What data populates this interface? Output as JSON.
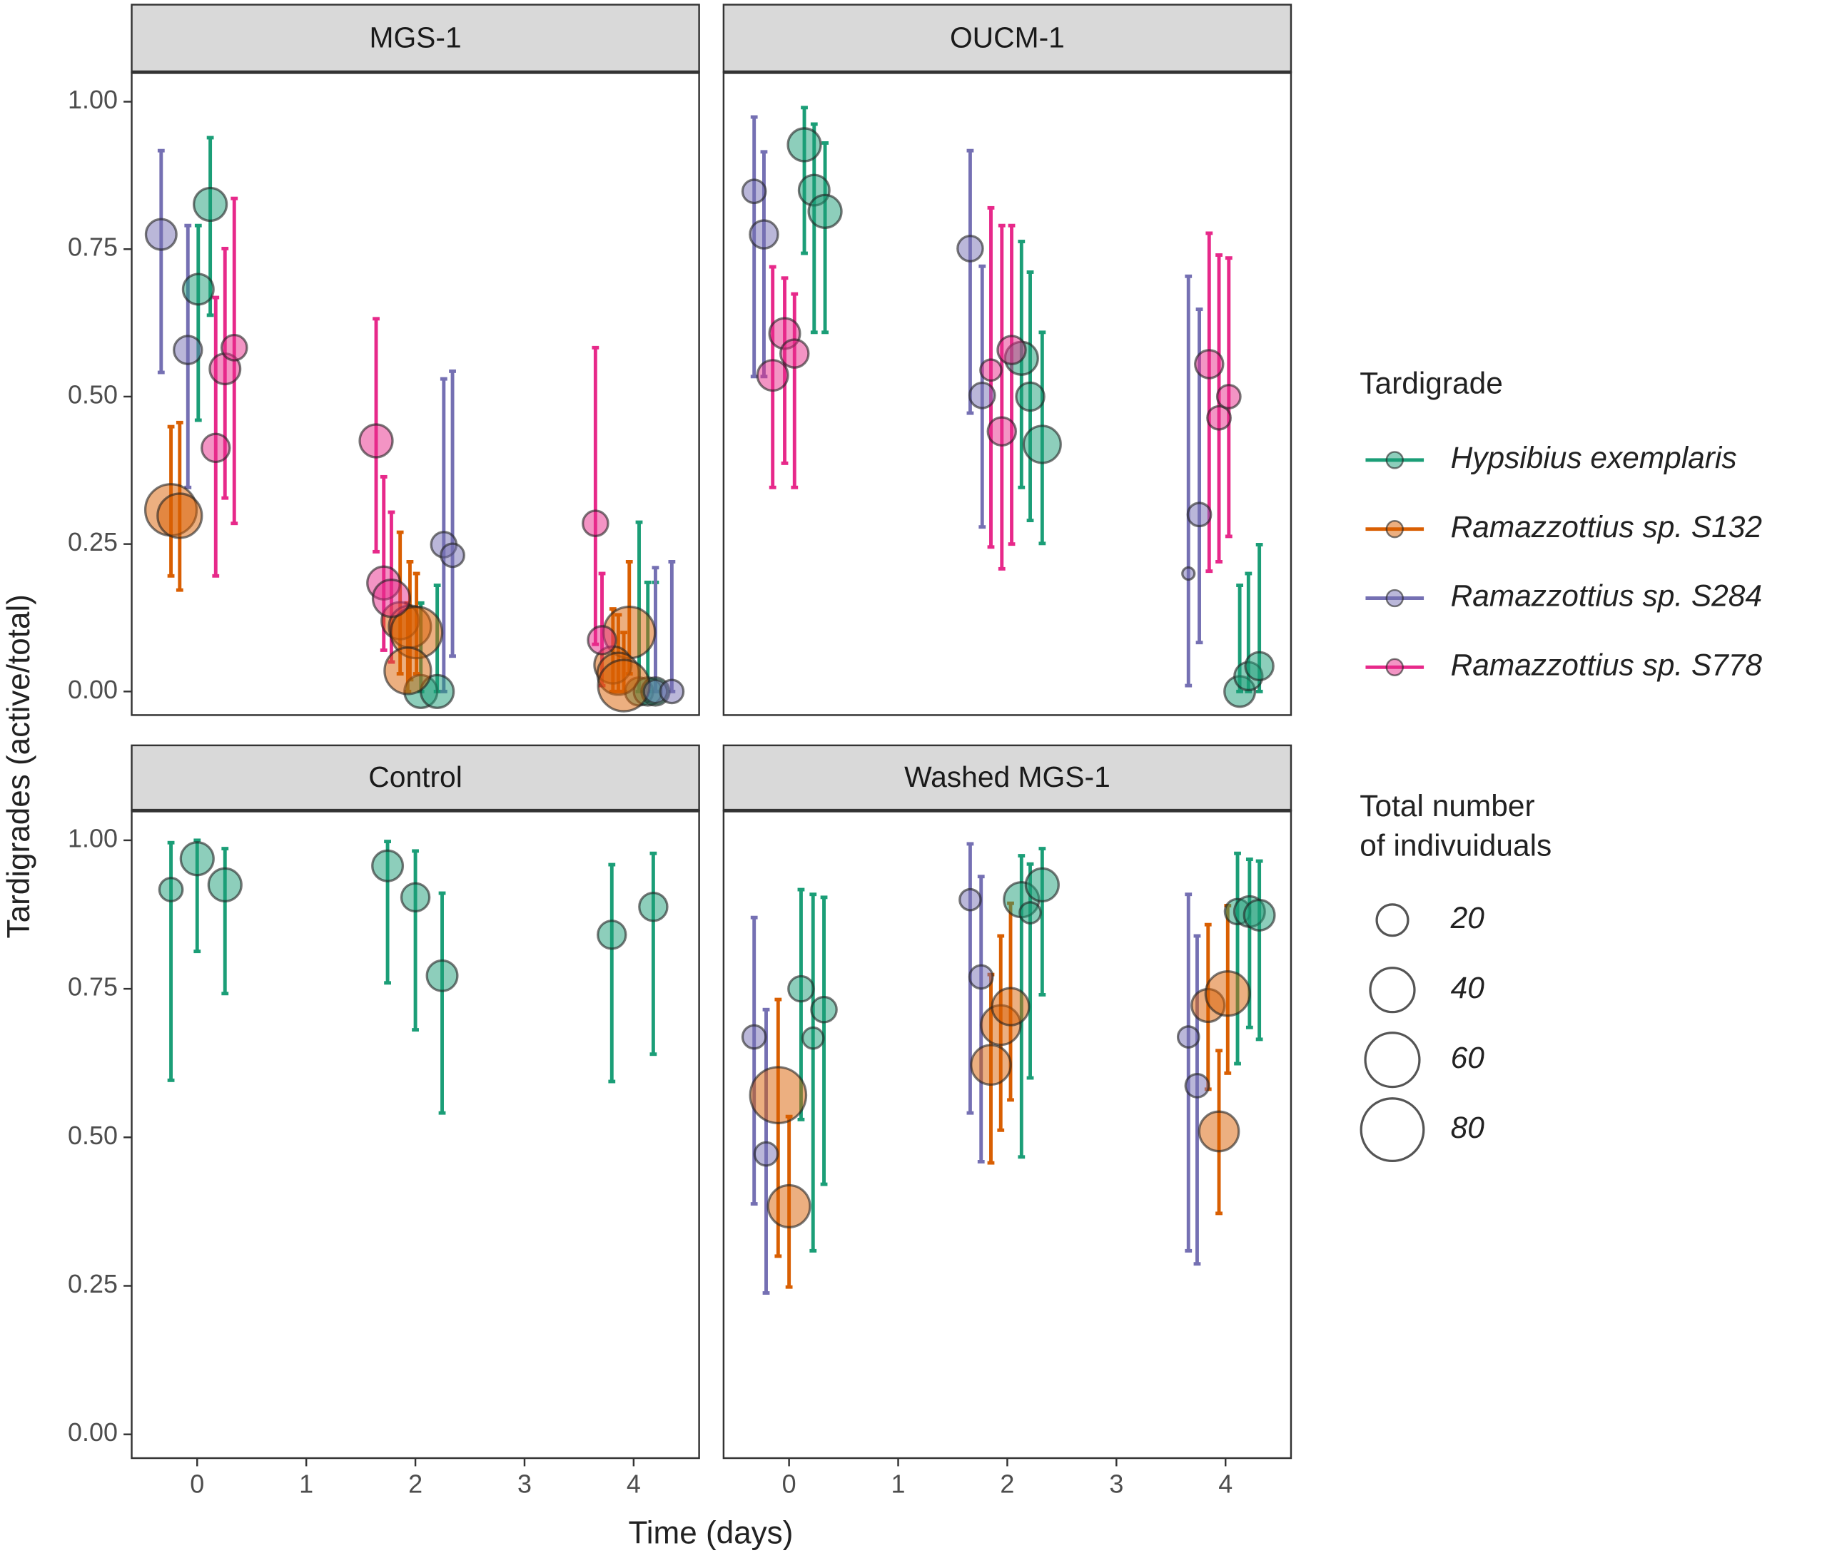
{
  "chart_data": {
    "type": "scatter",
    "x_label": "Time (days)",
    "y_label": "Tardigrades (active/total)",
    "xlim": [
      -0.6,
      4.6
    ],
    "xticks": [
      0,
      1,
      2,
      3,
      4
    ],
    "ylim": [
      -0.04,
      1.05
    ],
    "yticks": [
      {
        "value": 0,
        "label": "0.00"
      },
      {
        "value": 0.25,
        "label": "0.25"
      },
      {
        "value": 0.5,
        "label": "0.50"
      },
      {
        "value": 0.75,
        "label": "0.75"
      },
      {
        "value": 1,
        "label": "1.00"
      }
    ],
    "legend_title": "Tardigrade",
    "series": [
      {
        "name": "Hypsibius exemplaris",
        "color": "#1b9e77"
      },
      {
        "name": "Ramazzottius sp. S132",
        "color": "#d95f02"
      },
      {
        "name": "Ramazzottius sp. S284",
        "color": "#7570b3"
      },
      {
        "name": "Ramazzottius sp. S778",
        "color": "#e7298a"
      }
    ],
    "size_legend": {
      "title": [
        "Total number",
        "of indivuiduals"
      ],
      "values": [
        20,
        40,
        60,
        80
      ]
    },
    "facets": [
      {
        "title": "MGS-1",
        "series": [
          {
            "x": [
              0.12,
              0.01,
              2.05,
              2.2,
              4.05,
              4.13,
              4.2
            ],
            "values": [
              0.826,
              0.682,
              0,
              0,
              0,
              0,
              0
            ],
            "lower": [
              0.638,
              0.46,
              0,
              0,
              0,
              0,
              0
            ],
            "upper": [
              0.939,
              0.79,
              0.15,
              0.18,
              0.287,
              0.185,
              0.185
            ],
            "sizes": [
              22,
              19,
              22,
              22,
              16,
              16,
              16
            ]
          },
          {
            "x": [
              -0.24,
              -0.16,
              1.86,
              1.95,
              2.01,
              1.93,
              3.96,
              3.81,
              3.86,
              3.91
            ],
            "values": [
              0.308,
              0.298,
              0.12,
              0.11,
              0.1,
              0.035,
              0.1,
              0.045,
              0.03,
              0.01
            ],
            "lower": [
              0.196,
              0.172,
              0.03,
              0.02,
              0.03,
              0,
              0.03,
              0,
              0,
              0
            ],
            "upper": [
              0.449,
              0.456,
              0.27,
              0.22,
              0.2,
              0.15,
              0.22,
              0.14,
              0.13,
              0.1
            ],
            "sizes": [
              54,
              40,
              28,
              36,
              54,
              44,
              54,
              28,
              36,
              54
            ]
          },
          {
            "x": [
              -0.33,
              -0.085,
              2.26,
              2.34,
              4.2,
              4.35
            ],
            "values": [
              0.775,
              0.579,
              0.249,
              0.231,
              0,
              0
            ],
            "lower": [
              0.541,
              0.346,
              0,
              0.06,
              0,
              0
            ],
            "upper": [
              0.917,
              0.79,
              0.53,
              0.543,
              0.21,
              0.22
            ],
            "sizes": [
              19,
              16,
              13,
              11,
              11,
              11
            ]
          },
          {
            "x": [
              0.17,
              0.255,
              0.34,
              1.64,
              1.71,
              1.78,
              3.65,
              3.71
            ],
            "values": [
              0.413,
              0.547,
              0.583,
              0.425,
              0.184,
              0.158,
              0.285,
              0.087
            ],
            "lower": [
              0.196,
              0.328,
              0.285,
              0.237,
              0.07,
              0.05,
              0.08,
              0.01
            ],
            "upper": [
              0.668,
              0.751,
              0.836,
              0.632,
              0.364,
              0.304,
              0.583,
              0.2
            ],
            "sizes": [
              16,
              19,
              13,
              22,
              22,
              28,
              13,
              16
            ]
          }
        ]
      },
      {
        "title": "OUCM-1",
        "series": [
          {
            "x": [
              0.14,
              0.23,
              0.33,
              2.13,
              2.21,
              2.32,
              4.13,
              4.21,
              4.31
            ],
            "values": [
              0.927,
              0.85,
              0.814,
              0.565,
              0.5,
              0.419,
              0,
              0.026,
              0.043
            ],
            "lower": [
              0.743,
              0.609,
              0.609,
              0.346,
              0.29,
              0.251,
              0,
              0,
              0
            ],
            "upper": [
              0.99,
              0.962,
              0.93,
              0.763,
              0.711,
              0.609,
              0.18,
              0.2,
              0.249
            ],
            "sizes": [
              22,
              19,
              22,
              22,
              16,
              28,
              19,
              16,
              16
            ]
          },
          {
            "x": [],
            "values": [],
            "lower": [],
            "upper": [],
            "sizes": []
          },
          {
            "x": [
              -0.32,
              -0.23,
              1.66,
              1.77,
              3.66,
              3.76
            ],
            "values": [
              0.848,
              0.775,
              0.751,
              0.502,
              0.2,
              0.3
            ],
            "lower": [
              0.534,
              0.534,
              0.472,
              0.279,
              0.01,
              0.083
            ],
            "upper": [
              0.974,
              0.915,
              0.917,
              0.721,
              0.704,
              0.648
            ],
            "sizes": [
              11,
              16,
              13,
              13,
              3,
              11
            ]
          },
          {
            "x": [
              -0.15,
              -0.04,
              0.05,
              1.85,
              1.95,
              2.04,
              3.85,
              3.94,
              4.03
            ],
            "values": [
              0.536,
              0.607,
              0.573,
              0.545,
              0.441,
              0.579,
              0.555,
              0.464,
              0.5
            ],
            "lower": [
              0.346,
              0.387,
              0.346,
              0.245,
              0.208,
              0.25,
              0.204,
              0.22,
              0.263
            ],
            "upper": [
              0.72,
              0.701,
              0.674,
              0.82,
              0.79,
              0.79,
              0.777,
              0.74,
              0.735
            ],
            "sizes": [
              19,
              19,
              16,
              9,
              16,
              16,
              16,
              11,
              11
            ]
          }
        ]
      },
      {
        "title": "Control",
        "series": [
          {
            "x": [
              -0.24,
              0,
              0.255,
              1.745,
              2.0,
              2.245,
              3.8,
              4.18
            ],
            "values": [
              0.917,
              0.969,
              0.925,
              0.957,
              0.904,
              0.772,
              0.841,
              0.888
            ],
            "lower": [
              0.596,
              0.813,
              0.742,
              0.76,
              0.681,
              0.541,
              0.594,
              0.64
            ],
            "upper": [
              0.996,
              1.0,
              0.986,
              0.998,
              0.982,
              0.911,
              0.959,
              0.978
            ],
            "sizes": [
              11,
              22,
              22,
              19,
              16,
              19,
              16,
              16
            ]
          },
          {
            "x": [],
            "values": [],
            "lower": [],
            "upper": [],
            "sizes": []
          },
          {
            "x": [],
            "values": [],
            "lower": [],
            "upper": [],
            "sizes": []
          },
          {
            "x": [],
            "values": [],
            "lower": [],
            "upper": [],
            "sizes": []
          }
        ]
      },
      {
        "title": "Washed MGS-1",
        "series": [
          {
            "x": [
              0.11,
              0.22,
              0.32,
              2.13,
              2.21,
              2.32,
              4.11,
              4.22,
              4.31
            ],
            "values": [
              0.75,
              0.667,
              0.715,
              0.9,
              0.878,
              0.925,
              0.88,
              0.88,
              0.874
            ],
            "lower": [
              0.53,
              0.309,
              0.421,
              0.467,
              0.6,
              0.74,
              0.624,
              0.685,
              0.665
            ],
            "upper": [
              0.917,
              0.909,
              0.904,
              0.974,
              0.96,
              0.986,
              0.978,
              0.968,
              0.965
            ],
            "sizes": [
              13,
              9,
              13,
              25,
              9,
              22,
              13,
              19,
              19
            ]
          },
          {
            "x": [
              -0.1,
              0,
              1.85,
              1.94,
              2.03,
              3.84,
              3.94,
              4.02
            ],
            "values": [
              0.571,
              0.384,
              0.622,
              0.689,
              0.72,
              0.722,
              0.51,
              0.742
            ],
            "lower": [
              0.3,
              0.248,
              0.457,
              0.512,
              0.563,
              0.581,
              0.372,
              0.608
            ],
            "upper": [
              0.732,
              0.535,
              0.774,
              0.839,
              0.894,
              0.858,
              0.646,
              0.89
            ],
            "sizes": [
              64,
              36,
              32,
              32,
              28,
              22,
              32,
              40
            ]
          },
          {
            "x": [
              -0.32,
              -0.21,
              1.66,
              1.76,
              3.66,
              3.74
            ],
            "values": [
              0.669,
              0.472,
              0.9,
              0.77,
              0.669,
              0.587
            ],
            "lower": [
              0.388,
              0.238,
              0.541,
              0.459,
              0.309,
              0.287
            ],
            "upper": [
              0.87,
              0.715,
              0.994,
              0.939,
              0.909,
              0.839
            ],
            "sizes": [
              11,
              11,
              9,
              11,
              9,
              11
            ]
          },
          {
            "x": [],
            "values": [],
            "lower": [],
            "upper": [],
            "sizes": []
          }
        ]
      }
    ]
  }
}
